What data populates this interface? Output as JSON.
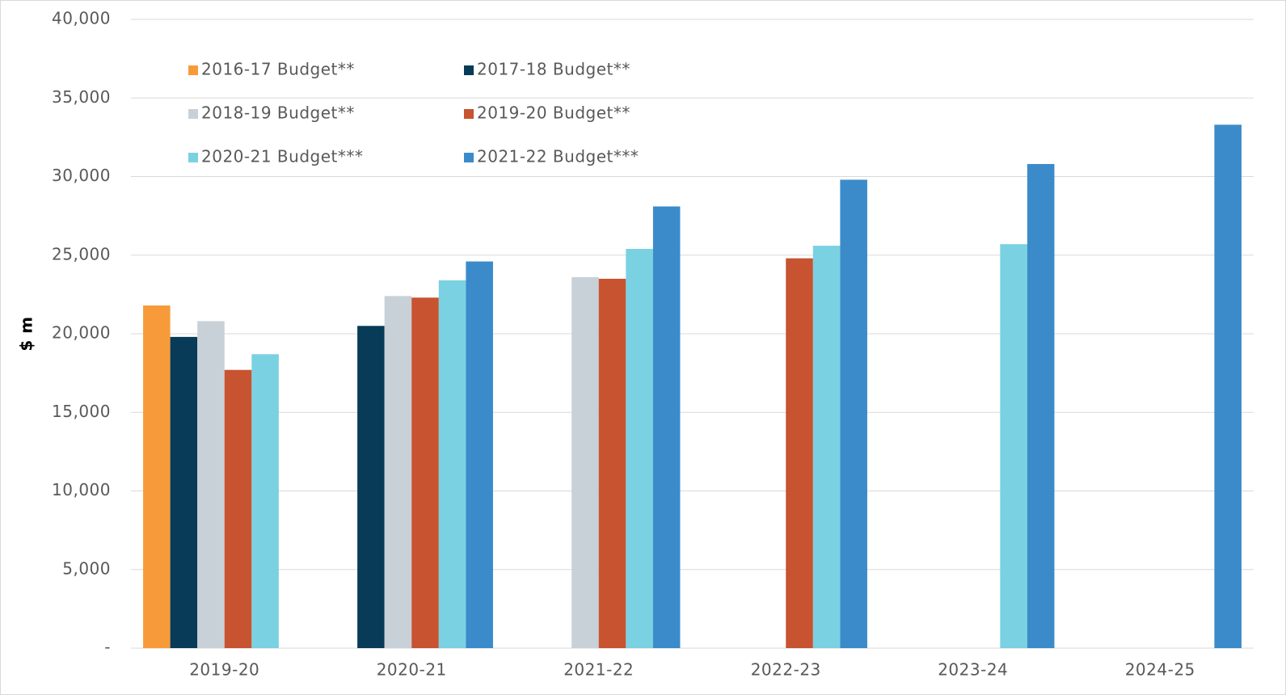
{
  "chart_data": {
    "type": "bar",
    "y_label": "$ m",
    "categories": [
      "2019-20",
      "2020-21",
      "2021-22",
      "2022-23",
      "2023-24",
      "2024-25"
    ],
    "series": [
      {
        "name": "2016-17 Budget**",
        "color": "#f79b3a",
        "values": [
          21800,
          null,
          null,
          null,
          null,
          null
        ]
      },
      {
        "name": "2017-18 Budget**",
        "color": "#073b57",
        "values": [
          19800,
          20500,
          null,
          null,
          null,
          null
        ]
      },
      {
        "name": "2018-19 Budget**",
        "color": "#c8d0d8",
        "values": [
          20800,
          22400,
          23600,
          null,
          null,
          null
        ]
      },
      {
        "name": "2019-20 Budget**",
        "color": "#c75330",
        "values": [
          17700,
          22300,
          23500,
          24800,
          null,
          null
        ]
      },
      {
        "name": "2020-21 Budget***",
        "color": "#7ad1e2",
        "values": [
          18700,
          23400,
          25400,
          25600,
          25700,
          null
        ]
      },
      {
        "name": "2021-22 Budget***",
        "color": "#3b8bca",
        "values": [
          null,
          24600,
          28100,
          29800,
          30800,
          33300
        ]
      }
    ],
    "ylim": [
      0,
      40000
    ],
    "yticks": [
      {
        "value": 0,
        "label": "-"
      },
      {
        "value": 5000,
        "label": "5,000"
      },
      {
        "value": 10000,
        "label": "10,000"
      },
      {
        "value": 15000,
        "label": "15,000"
      },
      {
        "value": 20000,
        "label": "20,000"
      },
      {
        "value": 25000,
        "label": "25,000"
      },
      {
        "value": 30000,
        "label": "30,000"
      },
      {
        "value": 35000,
        "label": "35,000"
      },
      {
        "value": 40000,
        "label": "40,000"
      }
    ],
    "grid": true,
    "legend": "top-left"
  }
}
